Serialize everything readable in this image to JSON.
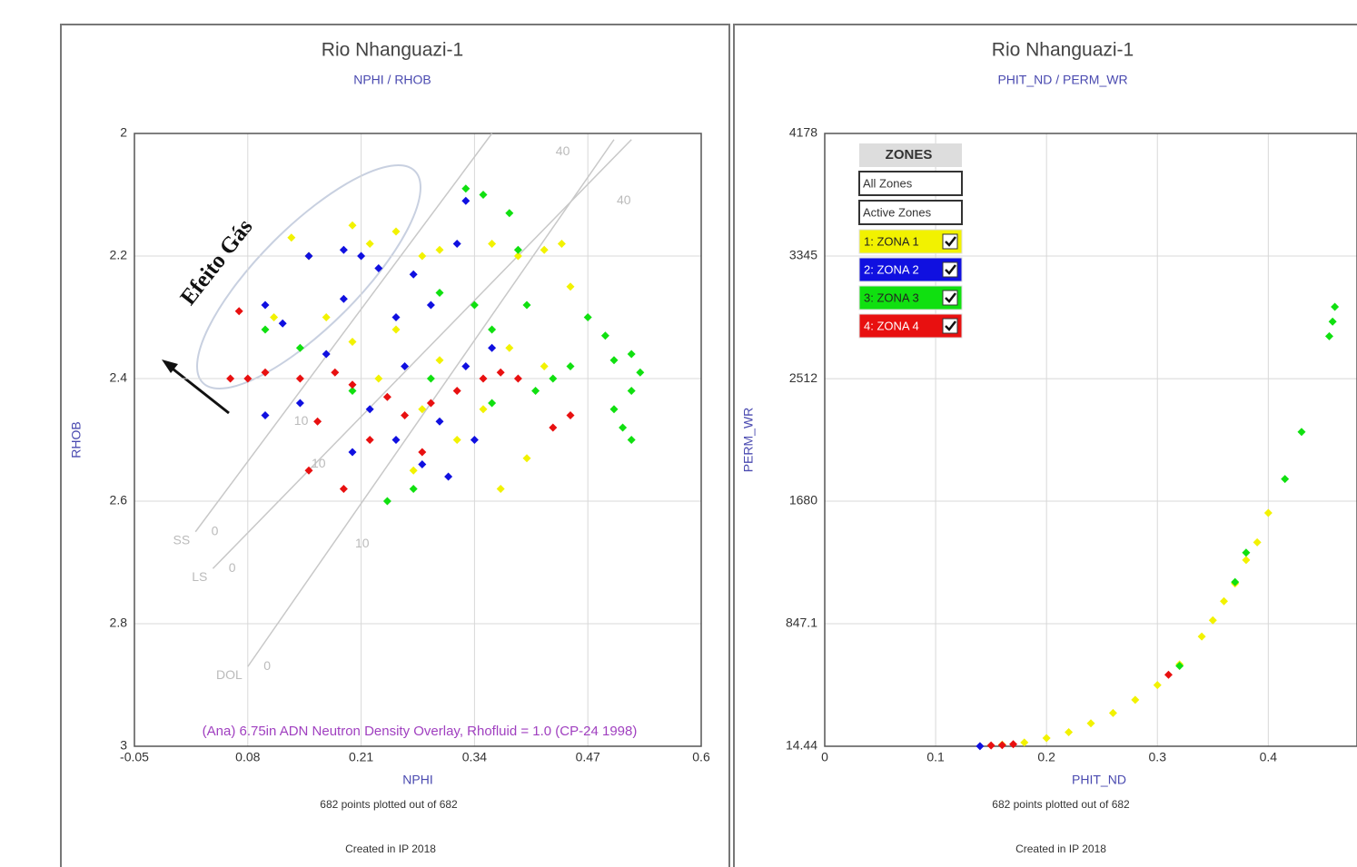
{
  "chart_data": [
    {
      "type": "scatter",
      "title": "Rio Nhanguazi-1",
      "subtitle": "NPHI / RHOB",
      "x_label": "NPHI",
      "y_label": "RHOB",
      "xlim": [
        -0.05,
        0.6
      ],
      "xticks": [
        -0.05,
        0.08,
        0.21,
        0.34,
        0.47,
        0.6
      ],
      "ylim": [
        2,
        3
      ],
      "yticks": [
        2,
        2.2,
        2.4,
        2.6,
        2.8,
        3
      ],
      "y_inverted": true,
      "grid": true,
      "footnote": "682 points plotted out of 682",
      "credit": "Created in IP 2018",
      "annotation": "(Ana) 6.75in ADN Neutron Density Overlay, Rhofluid = 1.0 (CP-24 1998)",
      "effect_label": "Efeito Gás",
      "overlay_lines": [
        {
          "name": "SS",
          "x": [
            0.02,
            0.36
          ],
          "y": [
            2.65,
            2.0
          ],
          "marks": [
            {
              "label": "0",
              "x": 0.035,
              "y": 2.65
            },
            {
              "label": "10",
              "x": 0.13,
              "y": 2.47
            },
            {
              "label": "40",
              "x": 0.43,
              "y": 2.03
            }
          ]
        },
        {
          "name": "LS",
          "x": [
            0.04,
            0.52
          ],
          "y": [
            2.71,
            2.01
          ],
          "marks": [
            {
              "label": "0",
              "x": 0.055,
              "y": 2.71
            },
            {
              "label": "10",
              "x": 0.15,
              "y": 2.54
            },
            {
              "label": "40",
              "x": 0.5,
              "y": 2.11
            }
          ]
        },
        {
          "name": "DOL",
          "x": [
            0.08,
            0.5
          ],
          "y": [
            2.87,
            2.01
          ],
          "marks": [
            {
              "label": "0",
              "x": 0.095,
              "y": 2.87
            },
            {
              "label": "10",
              "x": 0.2,
              "y": 2.67
            }
          ]
        }
      ],
      "series": [
        {
          "color": "#f2f200",
          "x": [
            0.13,
            0.15,
            0.2,
            0.22,
            0.25,
            0.28,
            0.3,
            0.36,
            0.39,
            0.42,
            0.44,
            0.45,
            0.17,
            0.2,
            0.23,
            0.25,
            0.28,
            0.3,
            0.32,
            0.27,
            0.35,
            0.38,
            0.42,
            0.4,
            0.37,
            0.11
          ],
          "values": [
            2.17,
            2.2,
            2.15,
            2.18,
            2.16,
            2.2,
            2.19,
            2.18,
            2.2,
            2.19,
            2.18,
            2.25,
            2.3,
            2.34,
            2.4,
            2.32,
            2.45,
            2.37,
            2.5,
            2.55,
            2.45,
            2.35,
            2.38,
            2.53,
            2.58,
            2.3
          ]
        },
        {
          "color": "#10e010",
          "x": [
            0.33,
            0.35,
            0.38,
            0.39,
            0.3,
            0.34,
            0.36,
            0.4,
            0.47,
            0.49,
            0.5,
            0.52,
            0.53,
            0.52,
            0.5,
            0.51,
            0.52,
            0.45,
            0.43,
            0.1,
            0.14,
            0.2,
            0.27,
            0.24,
            0.29,
            0.36,
            0.41
          ],
          "values": [
            2.09,
            2.1,
            2.13,
            2.19,
            2.26,
            2.28,
            2.32,
            2.28,
            2.3,
            2.33,
            2.37,
            2.36,
            2.39,
            2.42,
            2.45,
            2.48,
            2.5,
            2.38,
            2.4,
            2.32,
            2.35,
            2.42,
            2.58,
            2.6,
            2.4,
            2.44,
            2.42
          ]
        },
        {
          "color": "#1010e0",
          "x": [
            0.15,
            0.19,
            0.21,
            0.23,
            0.27,
            0.32,
            0.33,
            0.29,
            0.25,
            0.19,
            0.1,
            0.12,
            0.17,
            0.22,
            0.25,
            0.28,
            0.31,
            0.34,
            0.36,
            0.33,
            0.2,
            0.1,
            0.14,
            0.3,
            0.26
          ],
          "values": [
            2.2,
            2.19,
            2.2,
            2.22,
            2.23,
            2.18,
            2.11,
            2.28,
            2.3,
            2.27,
            2.28,
            2.31,
            2.36,
            2.45,
            2.5,
            2.54,
            2.56,
            2.5,
            2.35,
            2.38,
            2.52,
            2.46,
            2.44,
            2.47,
            2.38
          ]
        },
        {
          "color": "#e81010",
          "x": [
            0.07,
            0.06,
            0.08,
            0.1,
            0.14,
            0.18,
            0.2,
            0.24,
            0.26,
            0.29,
            0.32,
            0.35,
            0.37,
            0.39,
            0.43,
            0.45,
            0.15,
            0.19,
            0.22,
            0.28,
            0.16
          ],
          "values": [
            2.29,
            2.4,
            2.4,
            2.39,
            2.4,
            2.39,
            2.41,
            2.43,
            2.46,
            2.44,
            2.42,
            2.4,
            2.39,
            2.4,
            2.48,
            2.46,
            2.55,
            2.58,
            2.5,
            2.52,
            2.47
          ]
        }
      ]
    },
    {
      "type": "scatter",
      "title": "Rio Nhanguazi-1",
      "subtitle": "PHIT_ND / PERM_WR",
      "x_label": "PHIT_ND",
      "y_label": "PERM_WR",
      "xlim": [
        0,
        0.48
      ],
      "xticks": [
        0,
        0.1,
        0.2,
        0.3,
        0.4
      ],
      "ylim": [
        14.44,
        4178
      ],
      "yticks": [
        14.44,
        847.1,
        1680,
        2512,
        3345,
        4178
      ],
      "grid": true,
      "footnote": "682 points plotted out of 682",
      "credit": "Created in IP 2018",
      "legend": "upper left",
      "legend_title": "ZONES",
      "legend_buttons": [
        "All Zones",
        "Active Zones"
      ],
      "series": [
        {
          "name": "1: ZONA 1",
          "color": "#f2f200",
          "x": [
            0.16,
            0.18,
            0.2,
            0.22,
            0.24,
            0.26,
            0.28,
            0.3,
            0.32,
            0.34,
            0.35,
            0.36,
            0.37,
            0.38,
            0.39,
            0.4
          ],
          "values": [
            25,
            40,
            70,
            110,
            170,
            240,
            330,
            430,
            570,
            760,
            870,
            1000,
            1120,
            1280,
            1400,
            1600
          ]
        },
        {
          "name": "2: ZONA 2",
          "color": "#1010e0",
          "x": [
            0.14
          ],
          "values": [
            15
          ]
        },
        {
          "name": "3: ZONA 3",
          "color": "#10e010",
          "x": [
            0.32,
            0.37,
            0.38,
            0.415,
            0.43,
            0.455,
            0.458,
            0.46
          ],
          "values": [
            560,
            1130,
            1330,
            1830,
            2150,
            2800,
            2900,
            3000
          ]
        },
        {
          "name": "4: ZONA 4",
          "color": "#e81010",
          "x": [
            0.15,
            0.16,
            0.17,
            0.31
          ],
          "values": [
            20,
            22,
            28,
            500
          ]
        }
      ]
    }
  ]
}
